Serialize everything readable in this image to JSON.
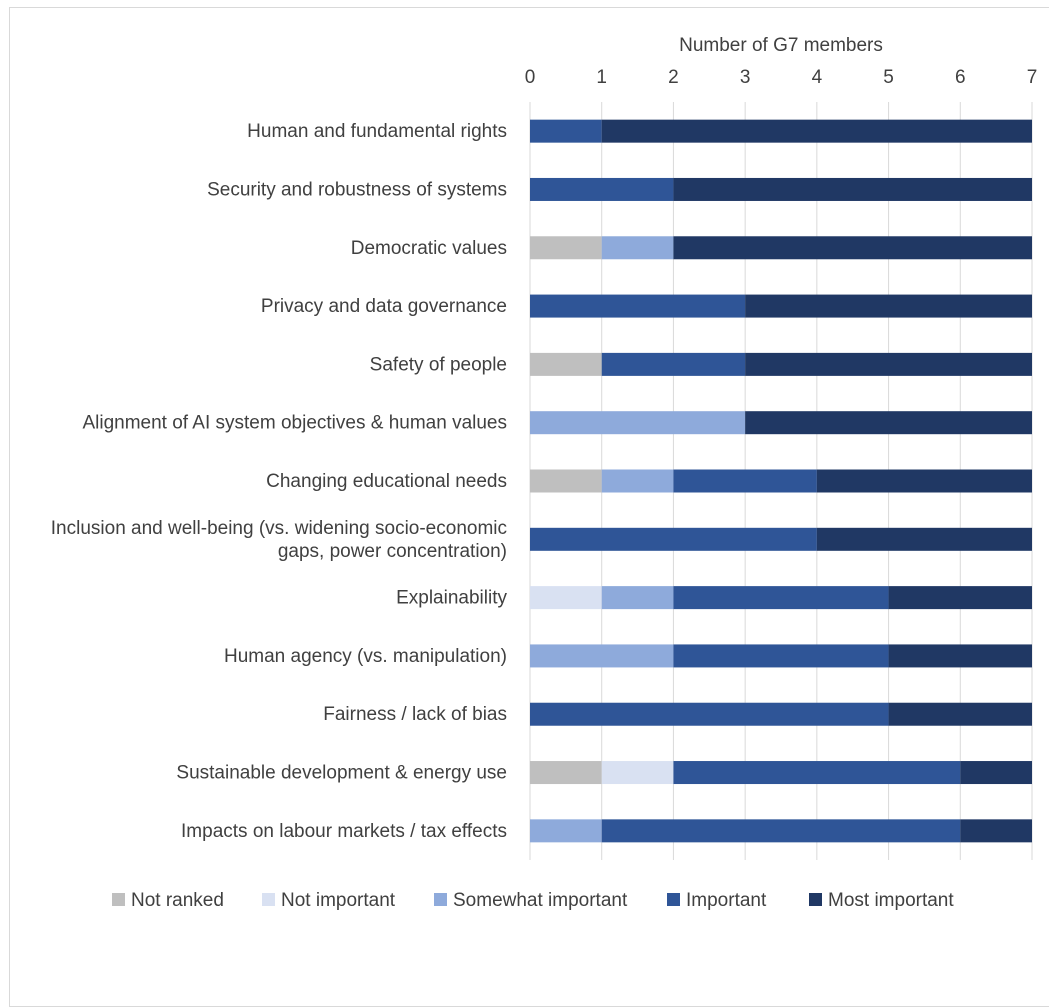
{
  "chart_data": {
    "type": "bar",
    "orientation": "horizontal",
    "stacked": true,
    "xlabel": "Number of G7 members",
    "xlim": [
      0,
      7
    ],
    "xticks": [
      0,
      1,
      2,
      3,
      4,
      5,
      6,
      7
    ],
    "grid": true,
    "legend_position": "bottom",
    "categories": [
      [
        "Human and fundamental rights"
      ],
      [
        "Security and robustness of systems"
      ],
      [
        "Democratic values"
      ],
      [
        "Privacy and data governance"
      ],
      [
        "Safety of people"
      ],
      [
        "Alignment of AI system objectives & human values"
      ],
      [
        "Changing educational needs"
      ],
      [
        "Inclusion and well-being (vs. widening socio-economic",
        "gaps, power concentration)"
      ],
      [
        "Explainability"
      ],
      [
        "Human agency (vs. manipulation)"
      ],
      [
        "Fairness / lack of bias"
      ],
      [
        "Sustainable development & energy use"
      ],
      [
        "Impacts on labour markets / tax effects"
      ]
    ],
    "series": [
      {
        "name": "Not ranked",
        "color": "#bfbfbf",
        "values": [
          0,
          0,
          1,
          0,
          1,
          0,
          1,
          0,
          0,
          0,
          0,
          1,
          0
        ]
      },
      {
        "name": "Not important",
        "color": "#d9e1f2",
        "values": [
          0,
          0,
          0,
          0,
          0,
          0,
          0,
          0,
          1,
          0,
          0,
          1,
          0
        ]
      },
      {
        "name": "Somewhat important",
        "color": "#8eaadb",
        "values": [
          0,
          0,
          1,
          0,
          0,
          3,
          1,
          0,
          1,
          2,
          0,
          0,
          1
        ]
      },
      {
        "name": "Important",
        "color": "#2f5597",
        "values": [
          1,
          2,
          0,
          3,
          2,
          0,
          2,
          4,
          3,
          3,
          5,
          4,
          5
        ]
      },
      {
        "name": "Most important",
        "color": "#203864",
        "values": [
          6,
          5,
          5,
          4,
          4,
          4,
          3,
          3,
          2,
          2,
          2,
          1,
          1
        ]
      }
    ]
  }
}
